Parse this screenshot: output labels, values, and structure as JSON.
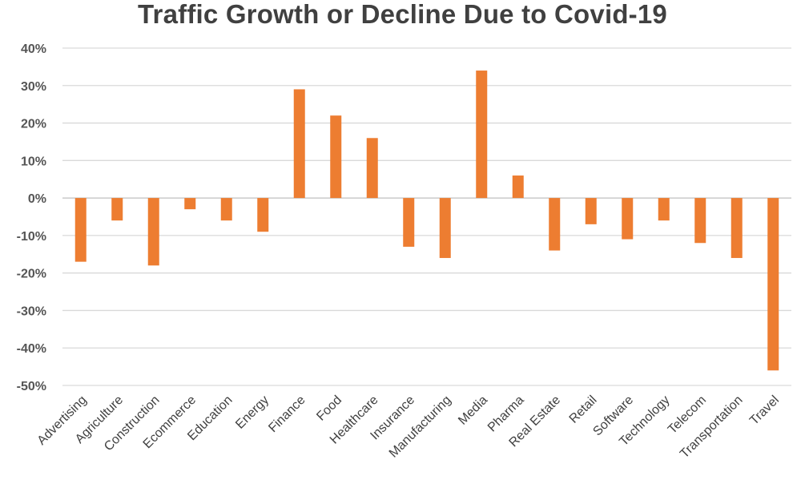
{
  "chart_data": {
    "type": "bar",
    "title": "Traffic Growth or Decline Due to Covid-19",
    "xlabel": "",
    "ylabel": "",
    "categories": [
      "Advertising",
      "Agriculture",
      "Construction",
      "Ecommerce",
      "Education",
      "Energy",
      "Finance",
      "Food",
      "Healthcare",
      "Insurance",
      "Manufacturing",
      "Media",
      "Pharma",
      "Real Estate",
      "Retail",
      "Software",
      "Technology",
      "Telecom",
      "Transportation",
      "Travel"
    ],
    "values": [
      -17,
      -6,
      -18,
      -3,
      -6,
      -9,
      29,
      22,
      16,
      -13,
      -16,
      34,
      6,
      -14,
      -7,
      -11,
      -6,
      -12,
      -16,
      -46
    ],
    "ylim": [
      -50,
      40
    ],
    "yticks": [
      40,
      30,
      20,
      10,
      0,
      -10,
      -20,
      -30,
      -40,
      -50
    ],
    "ytick_labels": [
      "40%",
      "30%",
      "20%",
      "10%",
      "0%",
      "-10%",
      "-20%",
      "-30%",
      "-40%",
      "-50%"
    ],
    "grid": true,
    "legend": "none",
    "bar_color": "#ED7D31",
    "grid_color": "#D9D9D9"
  }
}
